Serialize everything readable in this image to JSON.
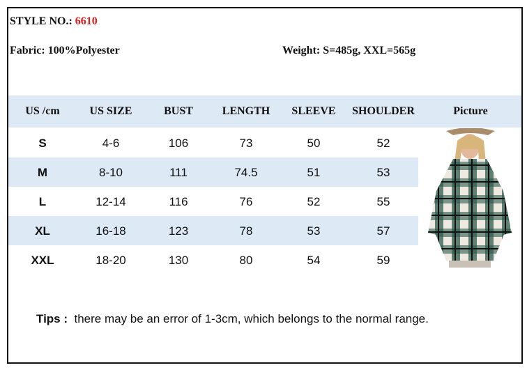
{
  "style": {
    "label": "STYLE NO.:",
    "number": "6610",
    "number_color": "#e31b1b"
  },
  "fabric": "Fabric: 100%Polyester",
  "weight": "Weight: S=485g, XXL=565g",
  "table": {
    "headers": [
      "US /cm",
      "US SIZE",
      "BUST",
      "LENGTH",
      "SLEEVE",
      "SHOULDER",
      "Picture"
    ],
    "rows": [
      [
        "S",
        "4-6",
        "106",
        "73",
        "50",
        "52"
      ],
      [
        "M",
        "8-10",
        "111",
        "74.5",
        "51",
        "53"
      ],
      [
        "L",
        "12-14",
        "116",
        "76",
        "52",
        "55"
      ],
      [
        "XL",
        "16-18",
        "123",
        "78",
        "53",
        "57"
      ],
      [
        "XXL",
        "18-20",
        "130",
        "80",
        "54",
        "59"
      ]
    ],
    "band_color": "#dde9f4"
  },
  "tips": {
    "label": "Tips :",
    "text": "there may be an error of 1-3cm, which belongs to the normal range."
  }
}
